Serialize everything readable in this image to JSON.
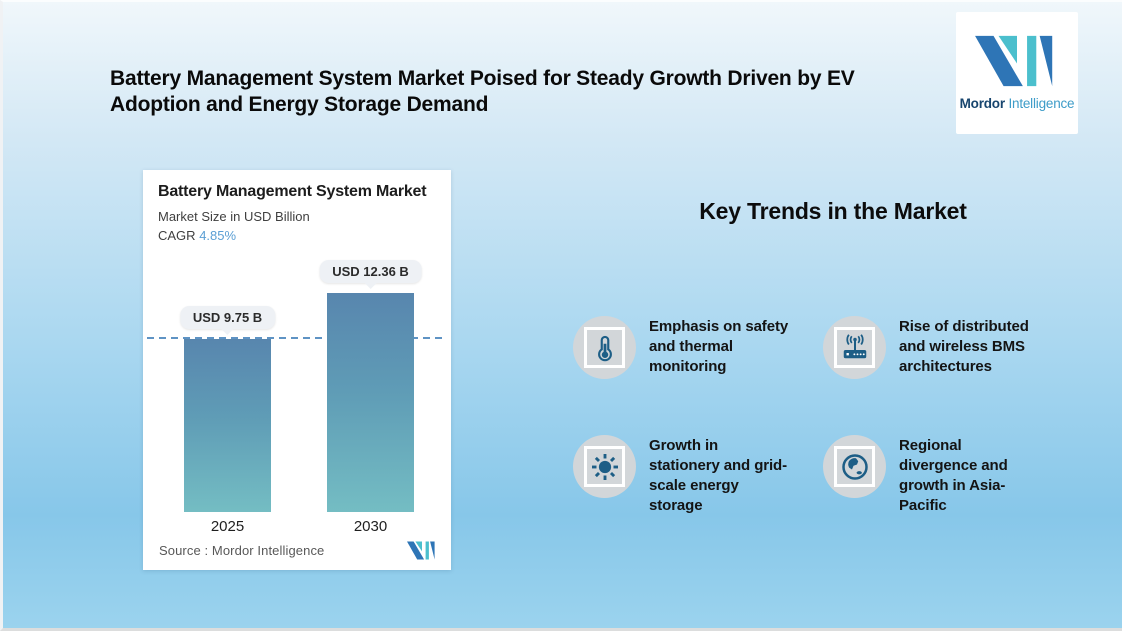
{
  "page": {
    "title": "Battery Management System Market Poised for Steady Growth Driven by EV\nAdoption and Energy Storage Demand"
  },
  "brand": {
    "name_bold": "Mordor",
    "name_light": "Intelligence"
  },
  "chart_card": {
    "title": "Battery Management System Market",
    "subtitle": "Market Size in USD Billion",
    "cagr_label": "CAGR",
    "cagr_value": "4.85%",
    "source_label": "Source :  Mordor Intelligence"
  },
  "chart_data": {
    "type": "bar",
    "title": "Battery Management System Market",
    "subtitle": "Market Size in USD Billion",
    "cagr_percent": 4.85,
    "categories": [
      "2025",
      "2030"
    ],
    "values": [
      9.75,
      12.36
    ],
    "bar_labels": [
      "USD 9.75 B",
      "USD 12.36 B"
    ],
    "unit": "USD Billion",
    "ylim": [
      0,
      12.36
    ],
    "legend": "none",
    "grid": false,
    "reference_line": {
      "style": "dashed",
      "at_value": 9.75,
      "color": "#5e93c4"
    },
    "colors": {
      "bar_gradient_top": "#5886ae",
      "bar_gradient_bottom": "#74bdc3"
    }
  },
  "trends": {
    "heading": "Key Trends in the Market",
    "items": [
      {
        "icon": "thermometer-icon",
        "text": "Emphasis on safety\nand thermal\nmonitoring"
      },
      {
        "icon": "wireless-router-icon",
        "text": "Rise of distributed\nand wireless BMS\narchitectures"
      },
      {
        "icon": "sun-icon",
        "text": "Growth in\nstationery and grid-\nscale energy\nstorage"
      },
      {
        "icon": "globe-icon",
        "text": "Regional\ndivergence and\ngrowth in Asia-\nPacific"
      }
    ]
  },
  "colors": {
    "background_top": "#f0f7fb",
    "background_bottom": "#9bd3ee",
    "brand_blue": "#2e75b6",
    "brand_teal": "#4bbfcd",
    "cagr_blue": "#5b9fd4",
    "icon_blue": "#1d5e86",
    "card_bg": "#ffffff"
  }
}
